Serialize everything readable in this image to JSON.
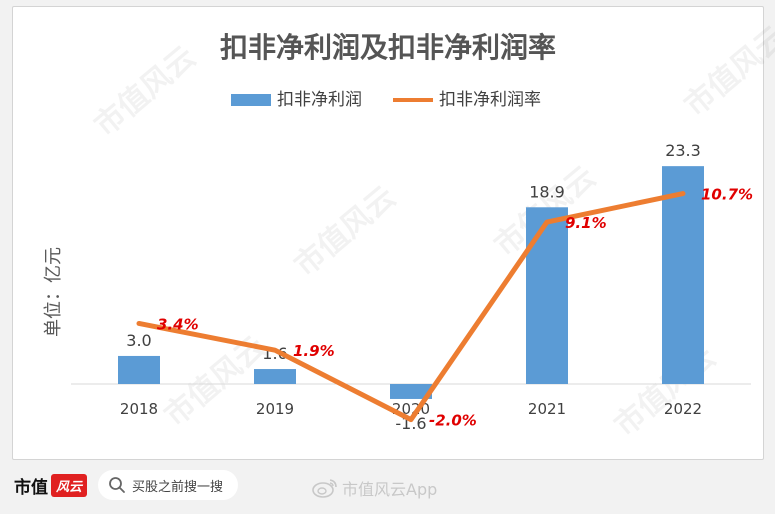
{
  "chart_data": {
    "type": "bar+line",
    "title": "扣非净利润及扣非净利润率",
    "ylabel": "单位：亿元",
    "categories": [
      "2018",
      "2019",
      "2020",
      "2021",
      "2022"
    ],
    "series": [
      {
        "name": "扣非净利润",
        "type": "bar",
        "color": "#5b9bd5",
        "values": [
          3.0,
          1.6,
          -1.6,
          18.9,
          23.3
        ],
        "labels": [
          "3.0",
          "1.6",
          "-1.6",
          "18.9",
          "23.3"
        ]
      },
      {
        "name": "扣非净利润率",
        "type": "line",
        "color": "#ed7d31",
        "values": [
          3.4,
          1.9,
          -2.0,
          9.1,
          10.7
        ],
        "labels": [
          "3.4%",
          "1.9%",
          "-2.0%",
          "9.1%",
          "10.7%"
        ],
        "label_color": "#e00000"
      }
    ],
    "legend_position": "top",
    "grid": false
  },
  "watermark_text": "市值风云",
  "footer": {
    "brand_name": "市值",
    "brand_logo_text": "风云",
    "search_placeholder": "买股之前搜一搜",
    "weibo_handle": "市值风云App"
  }
}
